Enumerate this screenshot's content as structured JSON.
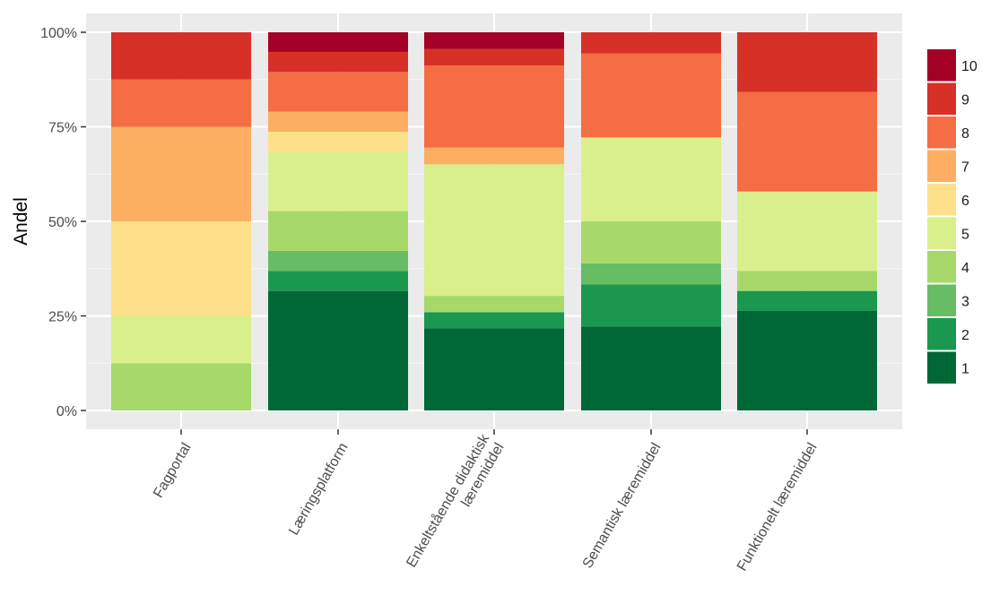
{
  "chart_data": {
    "type": "bar",
    "stacked": true,
    "percent": true,
    "title": "",
    "xlabel": "",
    "ylabel": "Andel",
    "ylim": [
      0,
      1
    ],
    "yticks": [
      {
        "value": 0,
        "label": "0%"
      },
      {
        "value": 0.25,
        "label": "25%"
      },
      {
        "value": 0.5,
        "label": "50%"
      },
      {
        "value": 0.75,
        "label": "75%"
      },
      {
        "value": 1,
        "label": "100%"
      }
    ],
    "categories": [
      [
        "Fagportal"
      ],
      [
        "Læringsplatform"
      ],
      [
        "Enkeltstående didaktisk",
        "læremiddel"
      ],
      [
        "Semantisk læremiddel"
      ],
      [
        "Funktionelt læremiddel"
      ]
    ],
    "series": [
      {
        "name": "1",
        "color": "#006837",
        "values": [
          0.0,
          0.316,
          0.217,
          0.222,
          0.263
        ]
      },
      {
        "name": "2",
        "color": "#1a9850",
        "values": [
          0.0,
          0.053,
          0.043,
          0.111,
          0.053
        ]
      },
      {
        "name": "3",
        "color": "#66bd63",
        "values": [
          0.0,
          0.053,
          0.0,
          0.056,
          0.0
        ]
      },
      {
        "name": "4",
        "color": "#a6d96a",
        "values": [
          0.125,
          0.105,
          0.043,
          0.111,
          0.053
        ]
      },
      {
        "name": "5",
        "color": "#d9ef8b",
        "values": [
          0.125,
          0.158,
          0.348,
          0.222,
          0.21
        ]
      },
      {
        "name": "6",
        "color": "#fee08b",
        "values": [
          0.25,
          0.052,
          0.0,
          0.0,
          0.0
        ]
      },
      {
        "name": "7",
        "color": "#fdae61",
        "values": [
          0.25,
          0.053,
          0.044,
          0.0,
          0.0
        ]
      },
      {
        "name": "8",
        "color": "#f46d43",
        "values": [
          0.125,
          0.105,
          0.217,
          0.222,
          0.263
        ]
      },
      {
        "name": "9",
        "color": "#d73027",
        "values": [
          0.125,
          0.053,
          0.044,
          0.056,
          0.158
        ]
      },
      {
        "name": "10",
        "color": "#a50026",
        "values": [
          0.0,
          0.052,
          0.044,
          0.0,
          0.0
        ]
      }
    ],
    "legend": {
      "position": "right",
      "order": "descending"
    },
    "grid": true,
    "panel_background": "#ebebeb"
  }
}
